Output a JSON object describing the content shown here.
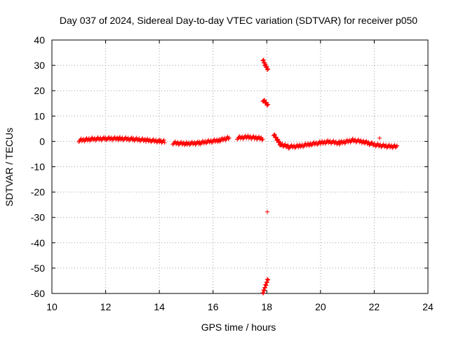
{
  "chart_data": {
    "type": "scatter",
    "title": "Day 037 of 2024, Sidereal Day-to-day VTEC variation (SDTVAR) for receiver p050",
    "xlabel": "GPS time / hours",
    "ylabel": "SDTVAR / TECUs",
    "xlim": [
      10,
      24
    ],
    "ylim": [
      -60,
      40
    ],
    "xticks": [
      10,
      12,
      14,
      16,
      18,
      20,
      22,
      24
    ],
    "yticks": [
      -60,
      -50,
      -40,
      -30,
      -20,
      -10,
      0,
      10,
      20,
      30,
      40
    ],
    "grid": true,
    "marker": "+",
    "color": "#ff0000",
    "series": [
      {
        "name": "SDTVAR",
        "segments": [
          [
            [
              11.0,
              0.5
            ],
            [
              11.5,
              1.0
            ],
            [
              12.0,
              1.2
            ],
            [
              12.5,
              1.2
            ],
            [
              13.0,
              1.0
            ],
            [
              13.5,
              0.6
            ],
            [
              14.0,
              0.2
            ],
            [
              14.2,
              0.0
            ]
          ],
          [
            [
              14.5,
              -0.5
            ],
            [
              15.0,
              -0.8
            ],
            [
              15.5,
              -0.5
            ],
            [
              15.8,
              0.0
            ],
            [
              16.2,
              0.5
            ],
            [
              16.6,
              1.5
            ]
          ],
          [
            [
              16.9,
              1.5
            ],
            [
              17.3,
              1.8
            ],
            [
              17.6,
              1.5
            ],
            [
              17.85,
              1.2
            ]
          ],
          [
            [
              18.25,
              3.0
            ],
            [
              18.5,
              -1.0
            ],
            [
              18.8,
              -2.0
            ],
            [
              19.2,
              -1.8
            ],
            [
              19.6,
              -1.0
            ],
            [
              20.0,
              -0.5
            ],
            [
              20.3,
              0.0
            ],
            [
              20.7,
              -0.5
            ],
            [
              21.2,
              0.5
            ],
            [
              21.6,
              0.0
            ],
            [
              21.9,
              -1.0
            ],
            [
              22.2,
              -1.5
            ],
            [
              22.5,
              -1.8
            ],
            [
              22.85,
              -2.0
            ]
          ],
          [
            [
              17.85,
              32.5
            ],
            [
              17.95,
              30.0
            ],
            [
              18.05,
              28.5
            ]
          ],
          [
            [
              17.85,
              16.5
            ],
            [
              18.05,
              14.5
            ]
          ],
          [
            [
              18.05,
              -54.0
            ],
            [
              17.95,
              -57.0
            ],
            [
              17.85,
              -60.0
            ]
          ]
        ],
        "points": [
          [
            18.02,
            -27.8
          ],
          [
            22.2,
            1.3
          ]
        ]
      }
    ]
  }
}
